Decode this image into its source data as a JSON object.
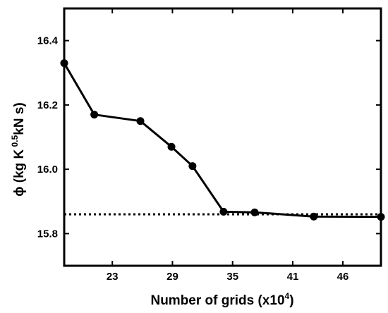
{
  "chart_data": {
    "type": "line",
    "title": "",
    "xlabel": {
      "text": "Number of grids (x10",
      "sup": "4",
      "end": ")"
    },
    "ylabel": {
      "part1": "ϕ (kg K",
      "sup": " 0.5",
      "part2": "kN s)"
    },
    "xlim": [
      18.2,
      49.8
    ],
    "ylim": [
      15.7,
      16.5
    ],
    "xticks": [
      23,
      29,
      35,
      41,
      46
    ],
    "xtick_labels": [
      "23",
      "29",
      "35",
      "41",
      "46"
    ],
    "yticks": [
      15.8,
      16.0,
      16.2,
      16.4
    ],
    "ytick_labels": [
      "15.8",
      "16.0",
      "16.2",
      "16.4"
    ],
    "grid": false,
    "series": [
      {
        "x": [
          18.2,
          21.2,
          25.8,
          28.9,
          31.0,
          34.1,
          37.2,
          43.1,
          49.8
        ],
        "y": [
          16.33,
          16.17,
          16.15,
          16.07,
          16.01,
          15.868,
          15.866,
          15.853,
          15.852
        ],
        "line_color": "#000000",
        "marker": "circle"
      }
    ],
    "reference_line": {
      "y": 15.86,
      "style": "dotted",
      "color": "#000000"
    }
  }
}
